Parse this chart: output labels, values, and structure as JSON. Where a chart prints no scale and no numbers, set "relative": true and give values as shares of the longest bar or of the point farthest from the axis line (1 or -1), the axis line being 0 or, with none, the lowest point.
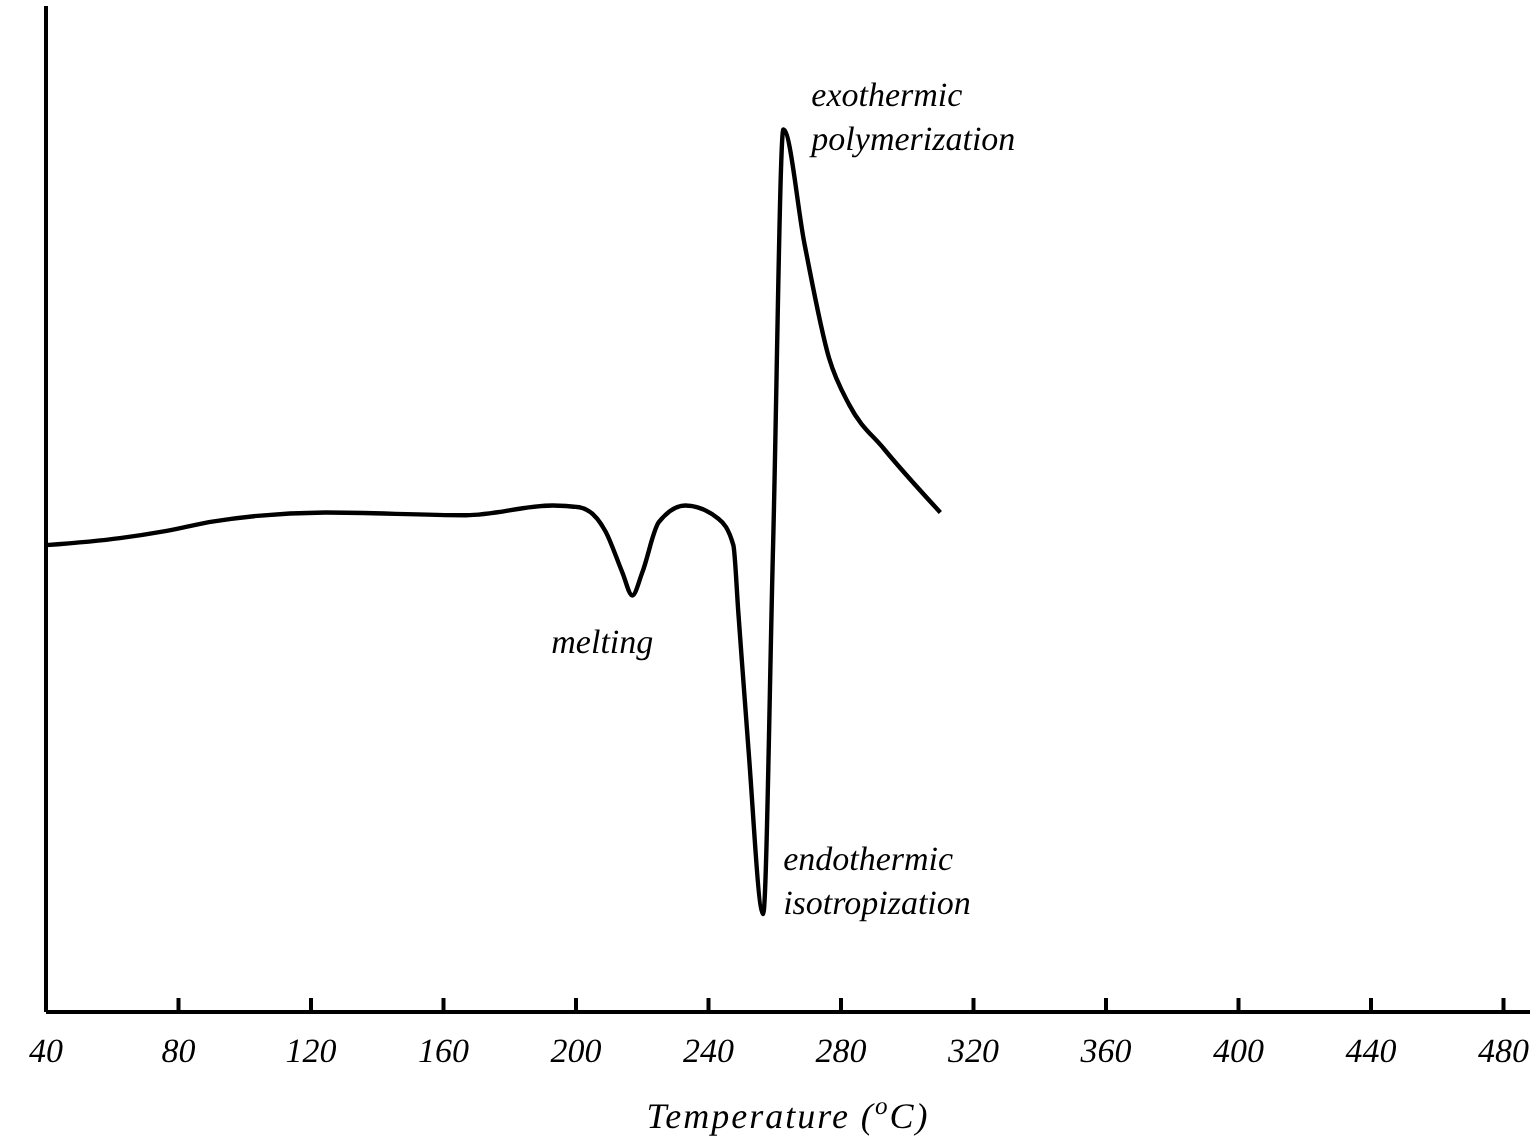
{
  "chart_data": {
    "type": "line",
    "relative": true,
    "xlabel": "Temperature ($^{o}$C)",
    "xlim": [
      40,
      488
    ],
    "xticks": [
      40,
      80,
      120,
      160,
      200,
      240,
      280,
      320,
      360,
      400,
      440,
      480
    ],
    "color": "#000000",
    "grid": false,
    "marker": "none",
    "line_style": "solid",
    "x": [
      40,
      62.3,
      76,
      90.7,
      124.4,
      166.7,
      193,
      201,
      209,
      214,
      217,
      220,
      225,
      233,
      243,
      247.5,
      249,
      252,
      256.5,
      259.5,
      262.6,
      269,
      276.4,
      282.5,
      293,
      310
    ],
    "values": [
      0.529,
      0.537,
      0.545,
      0.556,
      0.566,
      0.563,
      0.574,
      0.572,
      0.544,
      0.498,
      0.472,
      0.498,
      0.555,
      0.574,
      0.559,
      0.529,
      0.453,
      0.301,
      0.111,
      0.529,
      1,
      0.87,
      0.741,
      0.688,
      0.638,
      0.566
    ],
    "annotations": [
      {
        "text": "exothermic\npolymerization",
        "x": 262.6,
        "y": 1
      },
      {
        "text": "melting",
        "x": 217,
        "y": 0.472
      },
      {
        "text": "endothermic\nisotropization",
        "x": 256.5,
        "y": 0.111
      }
    ]
  }
}
